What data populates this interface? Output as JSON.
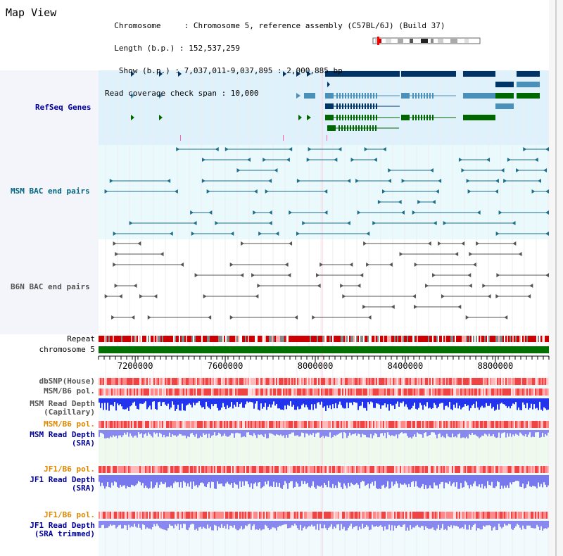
{
  "header": {
    "title": "Map View",
    "info_lines": [
      "  Chromosome     : Chromosome 5, reference assembly (C57BL/6J) (Build 37)",
      "  Length (b.p.) : 152,537,259",
      "   Show (b.p.) : 7,037,011-9,037,895 : 2,000,885 bp",
      "Read coverage check span : 10,000"
    ]
  },
  "tracks": {
    "refseq_genes": "RefSeq Genes",
    "msm_bac": "MSM BAC end pairs",
    "b6n_bac": "B6N BAC end pairs",
    "repeat": "Repeat",
    "chromosome": "chromosome 5",
    "dbsnp": "dbSNP(House)",
    "msm_b6_pol_1": "MSM/B6 pol.",
    "msm_read_depth_cap_1": "MSM Read Depth",
    "msm_read_depth_cap_2": "(Capillary)",
    "msm_b6_pol_2": "MSM/B6 pol.",
    "msm_read_depth_sra_1": "MSM Read Depth",
    "msm_read_depth_sra_2": "(SRA)",
    "jf1_b6_pol_1": "JF1/B6 pol.",
    "jf1_read_depth_sra_1": "JF1 Read Depth",
    "jf1_read_depth_sra_2": "(SRA)",
    "jf1_b6_pol_2": "JF1/B6 pol.",
    "jf1_read_depth_trim_1": "JF1 Read Depth",
    "jf1_read_depth_trim_2": "(SRA trimmed)"
  },
  "axis": {
    "start": 7037011,
    "end": 9037895,
    "ticks": [
      "7200000",
      "7600000",
      "8000000",
      "8400000",
      "8800000"
    ]
  },
  "colors": {
    "gene_dark": "#003366",
    "gene_teal": "#4a90b8",
    "gene_green": "#006600",
    "bac_msm": "#1f6f8b",
    "bac_b6n": "#555555",
    "chromosome": "#007000",
    "label_blue": "#000099",
    "label_teal": "#006680",
    "label_orange": "#dd8800"
  }
}
